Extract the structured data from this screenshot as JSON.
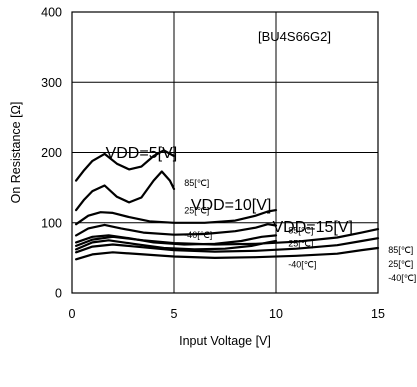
{
  "chart_data": {
    "type": "line",
    "title": "",
    "part_label": "[BU4S66G2]",
    "xlabel": "Input Voltage [V]",
    "ylabel": "On Resistance [Ω]",
    "xlim": [
      0,
      15
    ],
    "ylim": [
      0,
      400
    ],
    "xticks": [
      0,
      5,
      10,
      15
    ],
    "yticks": [
      0,
      100,
      200,
      300,
      400
    ],
    "grid": true,
    "groups": [
      {
        "label": "VDD=5[V]",
        "anchor": [
          3.4,
          192
        ]
      },
      {
        "label": "VDD=10[V]",
        "anchor": [
          7.8,
          118
        ]
      },
      {
        "label": "VDD=15[V]",
        "anchor": [
          11.8,
          87
        ]
      }
    ],
    "series": [
      {
        "label": "85[℃]",
        "label_at": [
          5.5,
          152
        ],
        "points": [
          [
            0.2,
            160
          ],
          [
            0.6,
            175
          ],
          [
            1.0,
            188
          ],
          [
            1.6,
            198
          ],
          [
            2.2,
            184
          ],
          [
            2.8,
            176
          ],
          [
            3.4,
            180
          ],
          [
            4.0,
            195
          ],
          [
            4.5,
            203
          ],
          [
            5.0,
            195
          ]
        ]
      },
      {
        "label": "25[℃]",
        "label_at": [
          5.5,
          113
        ],
        "points": [
          [
            0.2,
            118
          ],
          [
            0.6,
            133
          ],
          [
            1.0,
            145
          ],
          [
            1.6,
            153
          ],
          [
            2.2,
            137
          ],
          [
            2.8,
            129
          ],
          [
            3.4,
            136
          ],
          [
            4.0,
            160
          ],
          [
            4.4,
            173
          ],
          [
            4.8,
            160
          ],
          [
            5.0,
            148
          ]
        ]
      },
      {
        "label": "-40[℃]",
        "label_at": [
          5.5,
          78
        ],
        "points": [
          [
            0.2,
            98
          ],
          [
            0.8,
            110
          ],
          [
            1.4,
            115
          ],
          [
            2.0,
            114
          ],
          [
            2.8,
            108
          ],
          [
            3.8,
            102
          ],
          [
            5.0,
            100
          ],
          [
            6.5,
            100
          ],
          [
            8.0,
            103
          ],
          [
            9.0,
            110
          ],
          [
            9.6,
            116
          ],
          [
            10.0,
            118
          ]
        ]
      },
      {
        "label": "85[℃]",
        "label_at": [
          10.6,
          85
        ],
        "points": [
          [
            0.2,
            82
          ],
          [
            0.8,
            92
          ],
          [
            1.6,
            97
          ],
          [
            2.4,
            92
          ],
          [
            3.5,
            86
          ],
          [
            5.0,
            83
          ],
          [
            6.5,
            84
          ],
          [
            8.0,
            88
          ],
          [
            9.0,
            93
          ],
          [
            9.6,
            98
          ],
          [
            10.0,
            96
          ]
        ]
      },
      {
        "label": "25[℃]",
        "label_at": [
          10.6,
          66
        ],
        "points": [
          [
            0.2,
            72
          ],
          [
            1.0,
            80
          ],
          [
            1.8,
            82
          ],
          [
            2.8,
            78
          ],
          [
            4.0,
            72
          ],
          [
            5.5,
            69
          ],
          [
            7.0,
            70
          ],
          [
            8.3,
            74
          ],
          [
            9.3,
            80
          ],
          [
            10.0,
            82
          ]
        ]
      },
      {
        "label": "-40[℃]",
        "label_at": [
          10.6,
          36
        ],
        "points": [
          [
            0.2,
            62
          ],
          [
            1.0,
            72
          ],
          [
            1.8,
            75
          ],
          [
            3.0,
            70
          ],
          [
            4.5,
            64
          ],
          [
            6.0,
            62
          ],
          [
            7.5,
            63
          ],
          [
            8.8,
            67
          ],
          [
            9.6,
            72
          ],
          [
            10.0,
            74
          ]
        ]
      },
      {
        "label": "85[℃]",
        "label_at": [
          15.5,
          57
        ],
        "points": [
          [
            0.2,
            67
          ],
          [
            1.0,
            76
          ],
          [
            2.0,
            80
          ],
          [
            3.5,
            75
          ],
          [
            5.0,
            71
          ],
          [
            7.0,
            69
          ],
          [
            9.0,
            70
          ],
          [
            11.0,
            73
          ],
          [
            13.0,
            79
          ],
          [
            14.2,
            86
          ],
          [
            15.0,
            91
          ]
        ]
      },
      {
        "label": "25[℃]",
        "label_at": [
          15.5,
          37
        ],
        "points": [
          [
            0.2,
            58
          ],
          [
            1.0,
            66
          ],
          [
            2.0,
            69
          ],
          [
            3.5,
            65
          ],
          [
            5.0,
            61
          ],
          [
            7.0,
            59
          ],
          [
            9.0,
            60
          ],
          [
            11.0,
            63
          ],
          [
            13.0,
            68
          ],
          [
            14.2,
            74
          ],
          [
            15.0,
            78
          ]
        ]
      },
      {
        "label": "-40[℃]",
        "label_at": [
          15.5,
          17
        ],
        "points": [
          [
            0.2,
            48
          ],
          [
            1.0,
            55
          ],
          [
            2.0,
            58
          ],
          [
            3.5,
            55
          ],
          [
            5.0,
            52
          ],
          [
            7.0,
            50
          ],
          [
            9.0,
            51
          ],
          [
            11.0,
            53
          ],
          [
            13.0,
            56
          ],
          [
            14.2,
            61
          ],
          [
            15.0,
            64
          ]
        ]
      }
    ]
  }
}
